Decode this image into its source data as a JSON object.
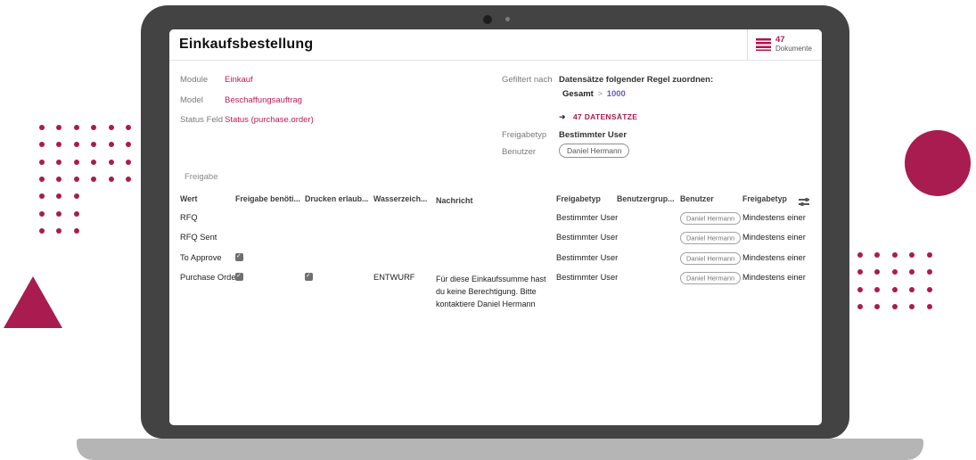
{
  "colors": {
    "accent": "#a81c4f",
    "link": "#c01a58",
    "rule_value": "#6a5ac2",
    "frame": "#434343",
    "base": "#b5b5b5"
  },
  "window": {
    "title": "Einkaufsbestellung",
    "docs_count": "47",
    "docs_label": "Dokumente",
    "docs_icon": "stacked-lines-icon"
  },
  "form": {
    "left": [
      {
        "label": "Module",
        "value": "Einkauf"
      },
      {
        "label": "Model",
        "value": "Beschaffungsauftrag"
      },
      {
        "label": "Status Feld",
        "value": "Status (purchase.order)"
      }
    ],
    "filtered": {
      "label": "Gefiltert nach",
      "rule_text": "Datensätze folgender Regel zuordnen:",
      "rule_field": "Gesamt",
      "rule_op": ">",
      "rule_value": "1000",
      "result_arrow": "➜",
      "result": "47 DATENSÄTZE"
    },
    "freigabetyp": {
      "label": "Freigabetyp",
      "value": "Bestimmter User"
    },
    "benutzer": {
      "label": "Benutzer",
      "value": "Daniel Hermann"
    }
  },
  "table": {
    "group_label": "Freigabe",
    "headers": [
      "Wert",
      "Freigabe benöti...",
      "Drucken erlaub...",
      "Wasserzeich...",
      "Nachricht",
      "Freigabetyp",
      "Benutzergrup...",
      "Benutzer",
      "Freigabetyp"
    ],
    "rows": [
      {
        "wert": "RFQ",
        "freigabe_benoetigt": false,
        "drucken_erlaubt": false,
        "wasserzeichen": "",
        "nachricht": "",
        "freigabetyp": "Bestimmter User",
        "benutzergruppe": "",
        "benutzer": "Daniel Hermann",
        "freigabetyp2": "Mindestens einer"
      },
      {
        "wert": "RFQ Sent",
        "freigabe_benoetigt": false,
        "drucken_erlaubt": false,
        "wasserzeichen": "",
        "nachricht": "",
        "freigabetyp": "Bestimmter User",
        "benutzergruppe": "",
        "benutzer": "Daniel Hermann",
        "freigabetyp2": "Mindestens einer"
      },
      {
        "wert": "To Approve",
        "freigabe_benoetigt": true,
        "drucken_erlaubt": false,
        "wasserzeichen": "",
        "nachricht": "",
        "freigabetyp": "Bestimmter User",
        "benutzergruppe": "",
        "benutzer": "Daniel Hermann",
        "freigabetyp2": "Mindestens einer"
      },
      {
        "wert": "Purchase Order",
        "freigabe_benoetigt": true,
        "drucken_erlaubt": true,
        "wasserzeichen": "ENTWURF",
        "nachricht": "Für diese Einkaufssumme hast du keine Berechtigung. Bitte kontaktiere Daniel Hermann",
        "freigabetyp": "Bestimmter User",
        "benutzergruppe": "",
        "benutzer": "Daniel Hermann",
        "freigabetyp2": "Mindestens einer"
      }
    ]
  }
}
